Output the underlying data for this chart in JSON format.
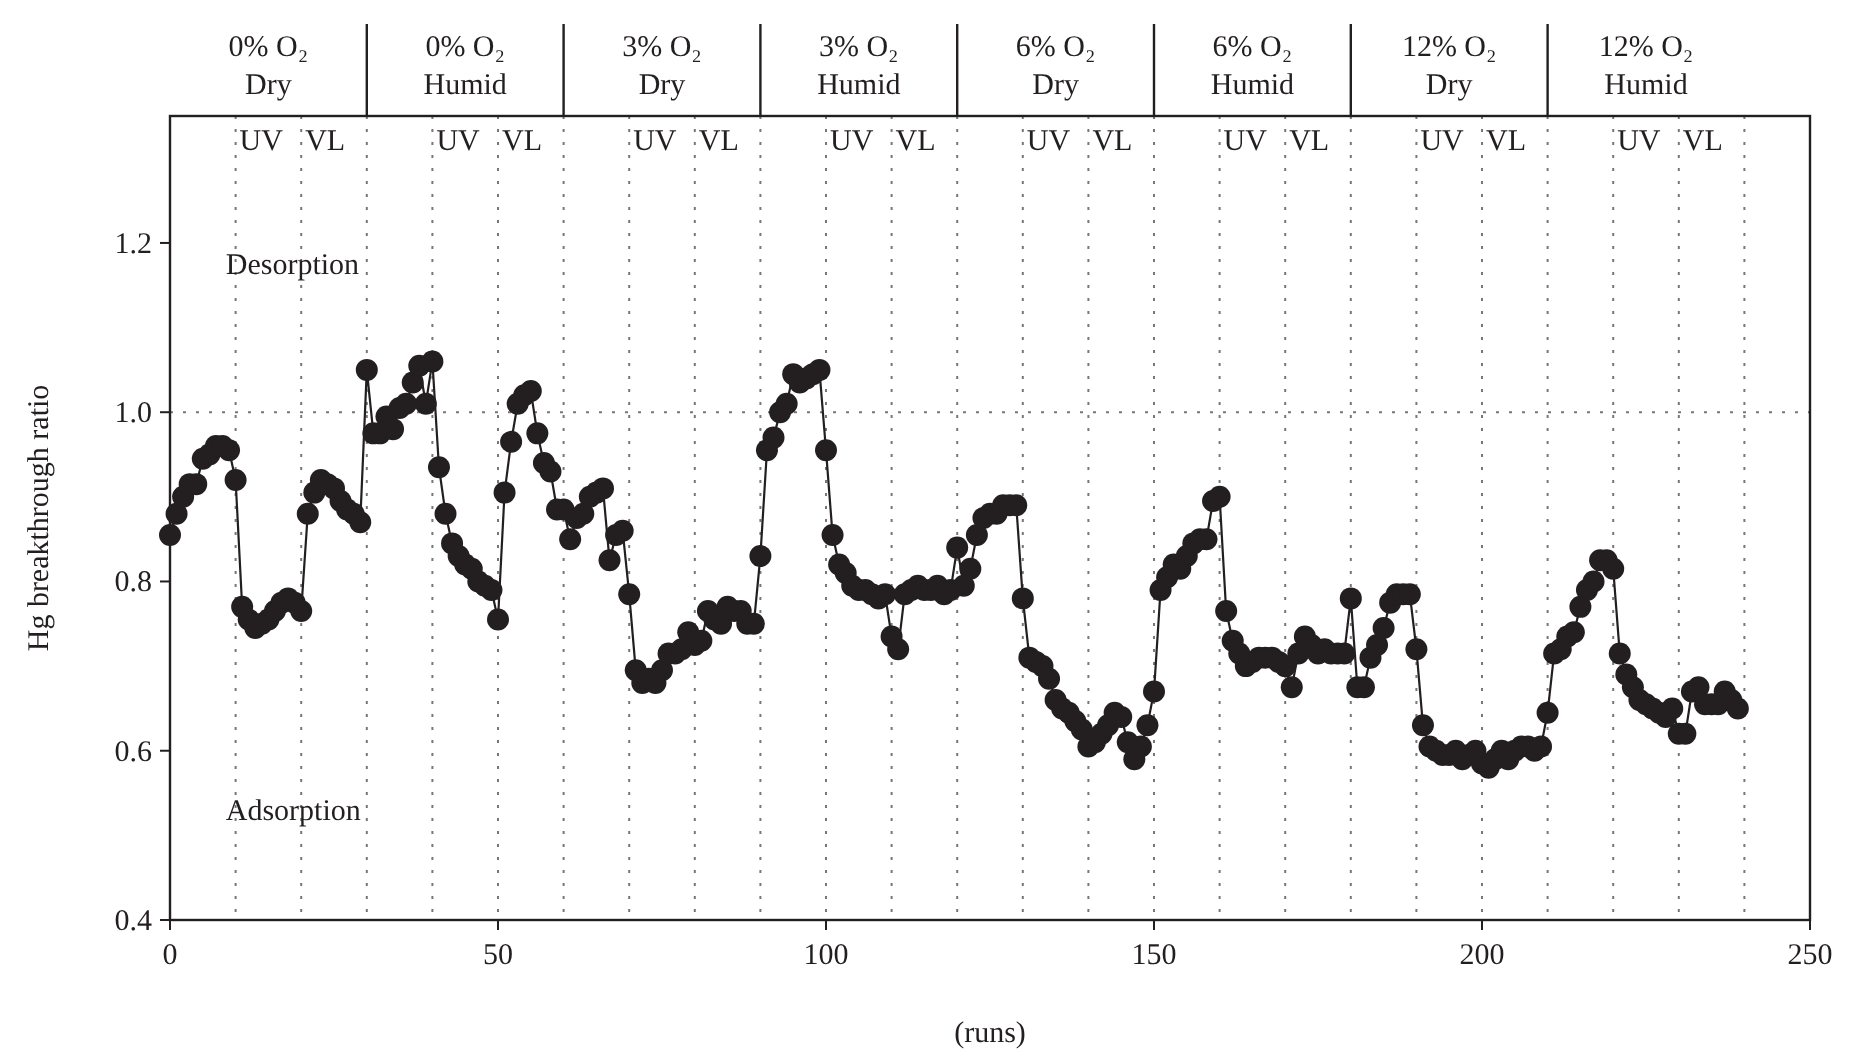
{
  "chart_data": {
    "type": "line",
    "xlabel": "(runs)",
    "ylabel": "Hg breakthrough ratio",
    "xlim": [
      0,
      250
    ],
    "xticks": [
      0,
      50,
      100,
      150,
      200,
      250
    ],
    "ylim": [
      0.4,
      1.35
    ],
    "yticks": [
      0.4,
      0.6,
      0.8,
      {
        "value": 1.0,
        "label": "1.0"
      },
      1.2
    ],
    "marker": "circle",
    "line_style": "solid",
    "series": [
      {
        "color": "#231f20",
        "x": [
          0,
          1,
          2,
          3,
          4,
          5,
          6,
          7,
          8,
          9,
          10,
          11,
          12,
          13,
          14,
          15,
          16,
          17,
          18,
          19,
          20,
          21,
          22,
          23,
          24,
          25,
          26,
          27,
          28,
          29,
          30,
          31,
          32,
          33,
          34,
          35,
          36,
          37,
          38,
          39,
          40,
          41,
          42,
          43,
          44,
          45,
          46,
          47,
          48,
          49,
          50,
          51,
          52,
          53,
          54,
          55,
          56,
          57,
          58,
          59,
          60,
          61,
          62,
          63,
          64,
          65,
          66,
          67,
          68,
          69,
          70,
          71,
          72,
          73,
          74,
          75,
          76,
          77,
          78,
          79,
          80,
          81,
          82,
          83,
          84,
          85,
          86,
          87,
          88,
          89,
          90,
          91,
          92,
          93,
          94,
          95,
          96,
          97,
          98,
          99,
          100,
          101,
          102,
          103,
          104,
          105,
          106,
          107,
          108,
          109,
          110,
          111,
          112,
          113,
          114,
          115,
          116,
          117,
          118,
          119,
          120,
          121,
          122,
          123,
          124,
          125,
          126,
          127,
          128,
          129,
          130,
          131,
          132,
          133,
          134,
          135,
          136,
          137,
          138,
          139,
          140,
          141,
          142,
          143,
          144,
          145,
          146,
          147,
          148,
          149,
          150,
          151,
          152,
          153,
          154,
          155,
          156,
          157,
          158,
          159,
          160,
          161,
          162,
          163,
          164,
          165,
          166,
          167,
          168,
          169,
          170,
          171,
          172,
          173,
          174,
          175,
          176,
          177,
          178,
          179,
          180,
          181,
          182,
          183,
          184,
          185,
          186,
          187,
          188,
          189,
          190,
          191,
          192,
          193,
          194,
          195,
          196,
          197,
          198,
          199,
          200,
          201,
          202,
          203,
          204,
          205,
          206,
          207,
          208,
          209,
          210,
          211,
          212,
          213,
          214,
          215,
          216,
          217,
          218,
          219,
          220,
          221,
          222,
          223,
          224,
          225,
          226,
          227,
          228,
          229,
          230,
          231,
          232,
          233,
          234,
          235,
          236,
          237,
          238,
          239
        ],
        "values": [
          0.855,
          0.88,
          0.9,
          0.915,
          0.915,
          0.945,
          0.95,
          0.96,
          0.96,
          0.955,
          0.92,
          0.77,
          0.755,
          0.745,
          0.75,
          0.755,
          0.765,
          0.775,
          0.78,
          0.775,
          0.765,
          0.88,
          0.905,
          0.92,
          0.915,
          0.91,
          0.895,
          0.885,
          0.88,
          0.87,
          1.05,
          0.975,
          0.975,
          0.995,
          0.98,
          1.005,
          1.01,
          1.035,
          1.055,
          1.01,
          1.06,
          0.935,
          0.88,
          0.845,
          0.83,
          0.82,
          0.815,
          0.8,
          0.795,
          0.79,
          0.755,
          0.905,
          0.965,
          1.01,
          1.02,
          1.025,
          0.975,
          0.94,
          0.93,
          0.885,
          0.885,
          0.85,
          0.875,
          0.88,
          0.9,
          0.905,
          0.91,
          0.825,
          0.855,
          0.86,
          0.785,
          0.695,
          0.68,
          0.685,
          0.68,
          0.695,
          0.715,
          0.715,
          0.72,
          0.74,
          0.725,
          0.73,
          0.765,
          0.755,
          0.75,
          0.77,
          0.765,
          0.765,
          0.75,
          0.75,
          0.83,
          0.955,
          0.97,
          1.0,
          1.01,
          1.045,
          1.035,
          1.04,
          1.045,
          1.05,
          0.955,
          0.855,
          0.82,
          0.81,
          0.795,
          0.79,
          0.79,
          0.785,
          0.78,
          0.785,
          0.735,
          0.72,
          0.785,
          0.79,
          0.795,
          0.79,
          0.79,
          0.795,
          0.785,
          0.79,
          0.84,
          0.795,
          0.815,
          0.855,
          0.875,
          0.88,
          0.88,
          0.89,
          0.89,
          0.89,
          0.78,
          0.71,
          0.705,
          0.7,
          0.685,
          0.66,
          0.65,
          0.645,
          0.635,
          0.625,
          0.605,
          0.61,
          0.62,
          0.63,
          0.645,
          0.64,
          0.61,
          0.59,
          0.605,
          0.63,
          0.67,
          0.79,
          0.805,
          0.82,
          0.815,
          0.83,
          0.845,
          0.85,
          0.85,
          0.895,
          0.9,
          0.765,
          0.73,
          0.715,
          0.7,
          0.705,
          0.71,
          0.71,
          0.71,
          0.705,
          0.7,
          0.675,
          0.715,
          0.735,
          0.725,
          0.715,
          0.72,
          0.715,
          0.715,
          0.715,
          0.78,
          0.675,
          0.675,
          0.71,
          0.725,
          0.745,
          0.775,
          0.785,
          0.785,
          0.785,
          0.72,
          0.63,
          0.605,
          0.6,
          0.595,
          0.595,
          0.6,
          0.59,
          0.595,
          0.6,
          0.585,
          0.58,
          0.59,
          0.6,
          0.59,
          0.6,
          0.605,
          0.605,
          0.6,
          0.605,
          0.645,
          0.715,
          0.72,
          0.735,
          0.74,
          0.77,
          0.79,
          0.8,
          0.825,
          0.825,
          0.815,
          0.715,
          0.69,
          0.675,
          0.66,
          0.655,
          0.65,
          0.645,
          0.64,
          0.65,
          0.62,
          0.62,
          0.67,
          0.675,
          0.655,
          0.655,
          0.655,
          0.67,
          0.66,
          0.65
        ]
      }
    ],
    "ref_lines": [
      {
        "axis": "y",
        "value": 1.0,
        "line_style": "dotted"
      },
      {
        "axis": "x",
        "value": 10,
        "label": "UV",
        "line_style": "dotted"
      },
      {
        "axis": "x",
        "value": 20,
        "label": "VL",
        "line_style": "dotted"
      },
      {
        "axis": "x",
        "value": 30,
        "line_style": "dotted"
      },
      {
        "axis": "x",
        "value": 40,
        "label": "UV",
        "line_style": "dotted"
      },
      {
        "axis": "x",
        "value": 50,
        "label": "VL",
        "line_style": "dotted"
      },
      {
        "axis": "x",
        "value": 60,
        "line_style": "dotted"
      },
      {
        "axis": "x",
        "value": 70,
        "label": "UV",
        "line_style": "dotted"
      },
      {
        "axis": "x",
        "value": 80,
        "label": "VL",
        "line_style": "dotted"
      },
      {
        "axis": "x",
        "value": 90,
        "line_style": "dotted"
      },
      {
        "axis": "x",
        "value": 100,
        "label": "UV",
        "line_style": "dotted"
      },
      {
        "axis": "x",
        "value": 110,
        "label": "VL",
        "line_style": "dotted"
      },
      {
        "axis": "x",
        "value": 120,
        "line_style": "dotted"
      },
      {
        "axis": "x",
        "value": 130,
        "label": "UV",
        "line_style": "dotted"
      },
      {
        "axis": "x",
        "value": 140,
        "label": "VL",
        "line_style": "dotted"
      },
      {
        "axis": "x",
        "value": 150,
        "line_style": "dotted"
      },
      {
        "axis": "x",
        "value": 160,
        "label": "UV",
        "line_style": "dotted"
      },
      {
        "axis": "x",
        "value": 170,
        "label": "VL",
        "line_style": "dotted"
      },
      {
        "axis": "x",
        "value": 180,
        "line_style": "dotted"
      },
      {
        "axis": "x",
        "value": 190,
        "label": "UV",
        "line_style": "dotted"
      },
      {
        "axis": "x",
        "value": 200,
        "label": "VL",
        "line_style": "dotted"
      },
      {
        "axis": "x",
        "value": 210,
        "line_style": "dotted"
      },
      {
        "axis": "x",
        "value": 220,
        "label": "UV",
        "line_style": "dotted"
      },
      {
        "axis": "x",
        "value": 230,
        "label": "VL",
        "line_style": "dotted"
      },
      {
        "axis": "x",
        "value": 240,
        "line_style": "dotted"
      }
    ],
    "annotations": [
      "0% O₂ Dry",
      "0% O₂ Humid",
      "3% O₂ Dry",
      "3% O₂ Humid",
      "6% O₂ Dry",
      "6% O₂ Humid",
      "12% O₂ Dry",
      "12% O₂ Humid",
      {
        "text": "Desorption",
        "x": 8.5,
        "y": 1.175
      },
      {
        "text": "Adsorption",
        "x": 8.5,
        "y": 0.53
      }
    ]
  }
}
